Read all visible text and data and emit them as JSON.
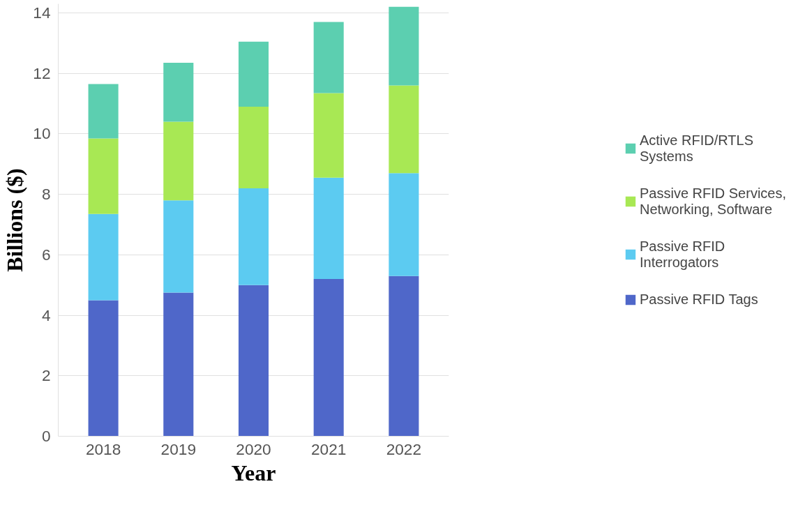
{
  "chart_data": {
    "type": "bar",
    "stacked": true,
    "xlabel": "Year",
    "ylabel": "Billions ($)",
    "categories": [
      "2018",
      "2019",
      "2020",
      "2021",
      "2022"
    ],
    "series": [
      {
        "name": "Passive RFID Tags",
        "color": "#4f67c9",
        "values": [
          4.5,
          4.75,
          5.0,
          5.2,
          5.3
        ]
      },
      {
        "name": "Passive RFID Interrogators",
        "color": "#5ccbf1",
        "values": [
          2.85,
          3.05,
          3.2,
          3.35,
          3.4
        ]
      },
      {
        "name": "Passive RFID Services, Networking, Software",
        "color": "#a8e854",
        "values": [
          2.5,
          2.6,
          2.7,
          2.8,
          2.9
        ]
      },
      {
        "name": "Active RFID/RTLS Systems",
        "color": "#5ccfb0",
        "values": [
          1.8,
          1.95,
          2.15,
          2.35,
          2.6
        ]
      }
    ],
    "ylim": [
      0,
      14.3
    ],
    "yticks": [
      0,
      2,
      4,
      6,
      8,
      10,
      12,
      14
    ],
    "grid": "y",
    "legend": "right"
  }
}
